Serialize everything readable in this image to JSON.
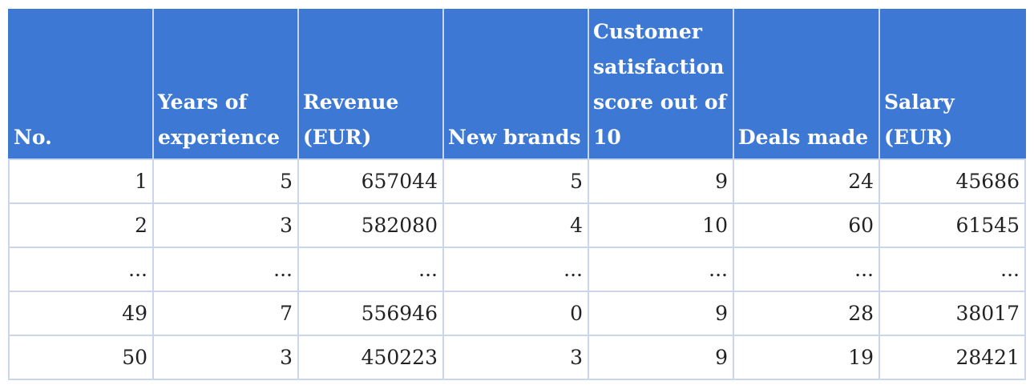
{
  "table": {
    "headers": [
      "No.",
      "Years of experience",
      "Revenue (EUR)",
      "New brands",
      "Customer satisfaction score out of 10",
      "Deals made",
      "Salary (EUR)"
    ],
    "rows": [
      [
        "1",
        "5",
        "657044",
        "5",
        "9",
        "24",
        "45686"
      ],
      [
        "2",
        "3",
        "582080",
        "4",
        "10",
        "60",
        "61545"
      ],
      [
        "...",
        "...",
        "...",
        "...",
        "...",
        "...",
        "..."
      ],
      [
        "49",
        "7",
        "556946",
        "0",
        "9",
        "28",
        "38017"
      ],
      [
        "50",
        "3",
        "450223",
        "3",
        "9",
        "19",
        "28421"
      ]
    ]
  },
  "colors": {
    "header_background": "#3d79d4",
    "header_text": "#ffffff",
    "grid_line": "#c9d6ec",
    "body_text": "#222222"
  }
}
